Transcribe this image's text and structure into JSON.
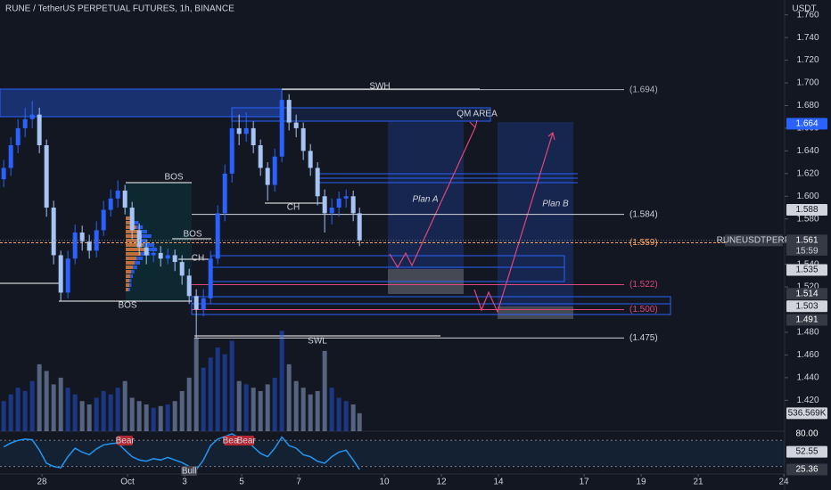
{
  "chart_data": {
    "type": "candlestick",
    "title": "RUNE / TetherUS PERPETUAL FUTURES, 1h, BINANCE",
    "currency": "USDT",
    "symbol": "RUNEUSDTPERP",
    "countdown": "15:59",
    "up_color": "#2962ff",
    "down_color": "#a8c4f5",
    "xlim": [
      -1.47,
      26.03
    ],
    "xticks": [
      {
        "value": 0,
        "label": "28"
      },
      {
        "value": 3,
        "label": "Oct"
      },
      {
        "value": 5,
        "label": "3"
      },
      {
        "value": 7,
        "label": "5"
      },
      {
        "value": 9,
        "label": "7"
      },
      {
        "value": 12,
        "label": "10"
      },
      {
        "value": 14,
        "label": "12"
      },
      {
        "value": 16,
        "label": "14"
      },
      {
        "value": 19,
        "label": "17"
      },
      {
        "value": 21,
        "label": "19"
      },
      {
        "value": 23,
        "label": "21"
      },
      {
        "value": 26,
        "label": "24"
      }
    ],
    "ylim": [
      1.3959,
      1.7731
    ],
    "yticks": [
      {
        "value": 1.76,
        "label": "1.760"
      },
      {
        "value": 1.74,
        "label": "1.740"
      },
      {
        "value": 1.72,
        "label": "1.720"
      },
      {
        "value": 1.7,
        "label": "1.700"
      },
      {
        "value": 1.68,
        "label": "1.680"
      },
      {
        "value": 1.66,
        "label": "1.660"
      },
      {
        "value": 1.64,
        "label": "1.640"
      },
      {
        "value": 1.62,
        "label": "1.620"
      },
      {
        "value": 1.6,
        "label": "1.600"
      },
      {
        "value": 1.58,
        "label": "1.580"
      },
      {
        "value": 1.54,
        "label": "1.540"
      },
      {
        "value": 1.52,
        "label": "1.520"
      },
      {
        "value": 1.48,
        "label": "1.480"
      },
      {
        "value": 1.46,
        "label": "1.460"
      },
      {
        "value": 1.44,
        "label": "1.440"
      },
      {
        "value": 1.42,
        "label": "1.420"
      }
    ],
    "candles": {
      "x": [
        -1.34,
        -1.09,
        -0.84,
        -0.59,
        -0.34,
        -0.09,
        0.16,
        0.41,
        0.66,
        0.91,
        1.16,
        1.41,
        1.66,
        1.91,
        2.16,
        2.41,
        2.66,
        2.91,
        3.16,
        3.41,
        3.66,
        3.91,
        4.16,
        4.41,
        4.66,
        4.91,
        5.16,
        5.41,
        5.66,
        5.91,
        6.16,
        6.41,
        6.66,
        6.91,
        7.16,
        7.41,
        7.66,
        7.91,
        8.16,
        8.41,
        8.66,
        8.91,
        9.16,
        9.41,
        9.66,
        9.91,
        10.16,
        10.41,
        10.66,
        10.91,
        11.13
      ],
      "open": [
        1.615,
        1.625,
        1.645,
        1.66,
        1.668,
        1.672,
        1.645,
        1.59,
        1.548,
        1.515,
        1.545,
        1.568,
        1.56,
        1.552,
        1.57,
        1.588,
        1.598,
        1.605,
        1.59,
        1.57,
        1.555,
        1.548,
        1.55,
        1.545,
        1.548,
        1.542,
        1.53,
        1.512,
        1.5,
        1.51,
        1.545,
        1.585,
        1.62,
        1.66,
        1.655,
        1.66,
        1.645,
        1.625,
        1.61,
        1.635,
        1.685,
        1.665,
        1.66,
        1.64,
        1.625,
        1.6,
        1.585,
        1.59,
        1.598,
        1.6,
        1.585
      ],
      "high": [
        1.632,
        1.652,
        1.668,
        1.678,
        1.684,
        1.678,
        1.65,
        1.596,
        1.552,
        1.552,
        1.575,
        1.574,
        1.566,
        1.578,
        1.596,
        1.606,
        1.614,
        1.61,
        1.595,
        1.576,
        1.562,
        1.558,
        1.556,
        1.554,
        1.553,
        1.548,
        1.536,
        1.518,
        1.518,
        1.552,
        1.592,
        1.628,
        1.675,
        1.672,
        1.674,
        1.666,
        1.65,
        1.63,
        1.642,
        1.694,
        1.69,
        1.672,
        1.665,
        1.646,
        1.63,
        1.606,
        1.598,
        1.604,
        1.606,
        1.605,
        1.59
      ],
      "low": [
        1.608,
        1.618,
        1.638,
        1.652,
        1.66,
        1.638,
        1.582,
        1.54,
        1.508,
        1.51,
        1.54,
        1.552,
        1.545,
        1.546,
        1.565,
        1.582,
        1.59,
        1.584,
        1.562,
        1.548,
        1.54,
        1.542,
        1.538,
        1.54,
        1.534,
        1.522,
        1.505,
        1.475,
        1.494,
        1.505,
        1.54,
        1.578,
        1.612,
        1.645,
        1.648,
        1.638,
        1.618,
        1.596,
        1.604,
        1.63,
        1.658,
        1.652,
        1.632,
        1.618,
        1.592,
        1.568,
        1.575,
        1.582,
        1.59,
        1.578,
        1.556
      ],
      "close": [
        1.625,
        1.645,
        1.66,
        1.668,
        1.672,
        1.645,
        1.59,
        1.548,
        1.515,
        1.545,
        1.568,
        1.56,
        1.552,
        1.57,
        1.588,
        1.598,
        1.605,
        1.59,
        1.57,
        1.555,
        1.548,
        1.55,
        1.545,
        1.548,
        1.542,
        1.53,
        1.512,
        1.5,
        1.51,
        1.545,
        1.585,
        1.62,
        1.66,
        1.655,
        1.66,
        1.645,
        1.625,
        1.61,
        1.635,
        1.685,
        1.665,
        1.66,
        1.64,
        1.625,
        1.6,
        1.585,
        1.59,
        1.598,
        1.6,
        1.585,
        1.561
      ]
    },
    "volume": {
      "values": [
        900,
        1100,
        1300,
        1200,
        1500,
        2000,
        1800,
        1400,
        1600,
        1300,
        1100,
        900,
        800,
        1000,
        1200,
        1100,
        1300,
        1500,
        1000,
        900,
        800,
        700,
        750,
        800,
        900,
        1200,
        1600,
        2800,
        1900,
        2200,
        2500,
        2300,
        2700,
        1500,
        1400,
        1300,
        1200,
        1400,
        1600,
        3000,
        2000,
        1500,
        1300,
        1100,
        1200,
        2400,
        1300,
        1000,
        900,
        800,
        536.569
      ],
      "ylim": [
        0,
        4900
      ],
      "tag": {
        "value": 536.569,
        "label": "536.569K"
      }
    },
    "rsi": {
      "values": [
        60,
        66,
        70,
        72,
        71,
        55,
        35,
        30,
        28,
        45,
        58,
        52,
        48,
        57,
        63,
        65,
        66,
        55,
        45,
        40,
        38,
        42,
        40,
        44,
        40,
        36,
        30,
        25,
        40,
        62,
        72,
        76,
        80,
        74,
        72,
        60,
        50,
        45,
        58,
        75,
        62,
        58,
        48,
        45,
        38,
        35,
        45,
        52,
        55,
        40,
        25.36
      ],
      "ylim": [
        17.2,
        86.8
      ],
      "bands": [
        70,
        30
      ],
      "color": "#2196f3",
      "tags": [
        {
          "value": 80,
          "label": "80.00"
        },
        {
          "value": 52.55,
          "label": "52.55"
        },
        {
          "value": 25.36,
          "label": "25.36"
        }
      ],
      "signals": [
        {
          "x": 2.91,
          "label": "Bear"
        },
        {
          "x": 5.16,
          "label": "Bull"
        },
        {
          "x": 6.66,
          "label": "Bear"
        },
        {
          "x": 7.16,
          "label": "Bear"
        }
      ]
    },
    "price_tags": [
      {
        "value": 1.664,
        "label": "1.664",
        "color": "#2962ff"
      },
      {
        "value": 1.588,
        "label": "1.588",
        "color": "#d1d4dc"
      },
      {
        "value": 1.561,
        "label": "1.561",
        "color": "#363a45"
      },
      {
        "value": 1.535,
        "label": "1.535",
        "color": "#d1d4dc"
      },
      {
        "value": 1.514,
        "label": "1.514",
        "color": "#363a45"
      },
      {
        "value": 1.503,
        "label": "1.503",
        "color": "#d1d4dc"
      },
      {
        "value": 1.491,
        "label": "1.491",
        "color": "#363a45"
      }
    ],
    "levels": [
      {
        "value": 1.694,
        "label": "(1.694)",
        "color": "#b2b5be"
      },
      {
        "value": 1.584,
        "label": "(1.584)",
        "color": "#d1d4dc"
      },
      {
        "value": 1.559,
        "label": "(1.559)",
        "color": "#f7a35c"
      },
      {
        "value": 1.522,
        "label": "(1.522)",
        "color": "#e0457b"
      },
      {
        "value": 1.5,
        "label": "(1.500)",
        "color": "#e0457b"
      },
      {
        "value": 1.475,
        "label": "(1.475)",
        "color": "#d1d4dc"
      }
    ],
    "annotations": [
      "SWH",
      "QM AREA",
      "BOS",
      "BOS",
      "CH",
      "CH",
      "BOS",
      "SWL",
      "Plan A",
      "Plan B"
    ]
  }
}
